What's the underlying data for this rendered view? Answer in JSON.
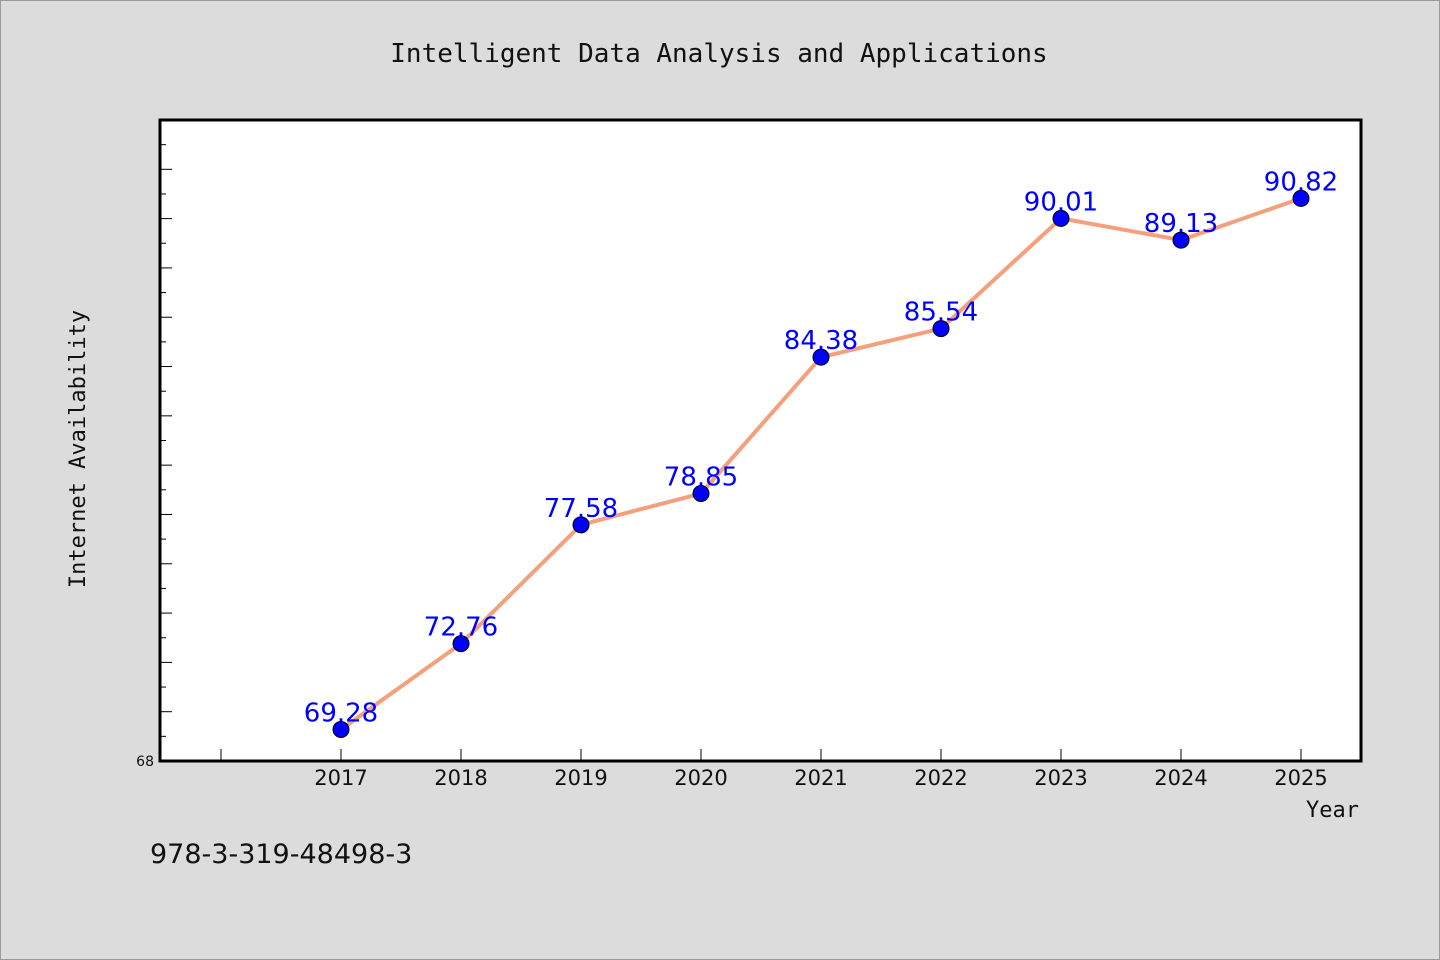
{
  "chart_data": {
    "type": "line",
    "title": "Intelligent Data Analysis and Applications",
    "xlabel": "Year",
    "ylabel": "Internet Availability",
    "categories": [
      "2017",
      "2018",
      "2019",
      "2020",
      "2021",
      "2022",
      "2023",
      "2024",
      "2025"
    ],
    "series": [
      {
        "values": [
          69.28,
          72.76,
          77.58,
          78.85,
          84.38,
          85.54,
          90.01,
          89.13,
          90.82
        ],
        "data_labels": [
          "69.28",
          "72.76",
          "77.58",
          "78.85",
          "84.38",
          "85.54",
          "90.01",
          "89.13",
          "90.82"
        ]
      }
    ],
    "ylim": [
      68,
      94
    ],
    "y_tick_labels": [
      "68"
    ],
    "grid": false,
    "legend": "none",
    "colors": {
      "line": "#f4a07c",
      "marker": "#0000ff",
      "data_label": "#0000ff",
      "plot_background": "#ffffff",
      "page_background": "#dcdcdc"
    }
  },
  "annotation": "978-3-319-48498-3"
}
